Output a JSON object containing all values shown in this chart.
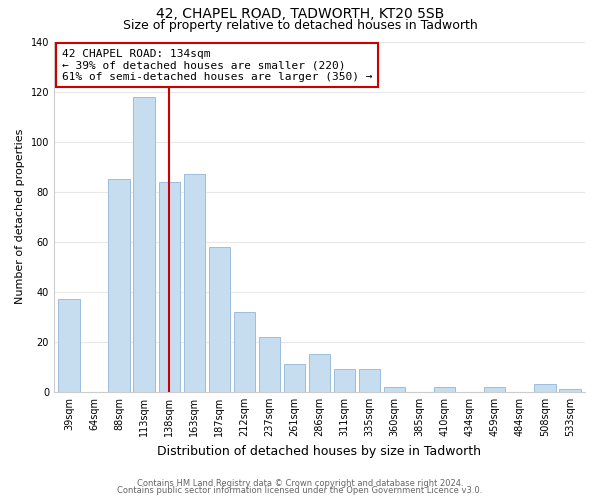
{
  "title": "42, CHAPEL ROAD, TADWORTH, KT20 5SB",
  "subtitle": "Size of property relative to detached houses in Tadworth",
  "xlabel": "Distribution of detached houses by size in Tadworth",
  "ylabel": "Number of detached properties",
  "bar_labels": [
    "39sqm",
    "64sqm",
    "88sqm",
    "113sqm",
    "138sqm",
    "163sqm",
    "187sqm",
    "212sqm",
    "237sqm",
    "261sqm",
    "286sqm",
    "311sqm",
    "335sqm",
    "360sqm",
    "385sqm",
    "410sqm",
    "434sqm",
    "459sqm",
    "484sqm",
    "508sqm",
    "533sqm"
  ],
  "bar_values": [
    37,
    0,
    85,
    118,
    84,
    87,
    58,
    32,
    22,
    11,
    15,
    9,
    9,
    2,
    0,
    2,
    0,
    2,
    0,
    3,
    1
  ],
  "bar_color": "#c6ddf0",
  "bar_edge_color": "#9bbedd",
  "vline_x_index": 4,
  "vline_color": "#cc0000",
  "annotation_line1": "42 CHAPEL ROAD: 134sqm",
  "annotation_line2": "← 39% of detached houses are smaller (220)",
  "annotation_line3": "61% of semi-detached houses are larger (350) →",
  "annotation_box_edge_color": "#cc0000",
  "ylim": [
    0,
    140
  ],
  "yticks": [
    0,
    20,
    40,
    60,
    80,
    100,
    120,
    140
  ],
  "footnote1": "Contains HM Land Registry data © Crown copyright and database right 2024.",
  "footnote2": "Contains public sector information licensed under the Open Government Licence v3.0.",
  "background_color": "#ffffff",
  "grid_color": "#e8e8e8",
  "title_fontsize": 10,
  "subtitle_fontsize": 9,
  "xlabel_fontsize": 9,
  "ylabel_fontsize": 8,
  "tick_fontsize": 7,
  "annot_fontsize": 8,
  "footnote_fontsize": 6
}
